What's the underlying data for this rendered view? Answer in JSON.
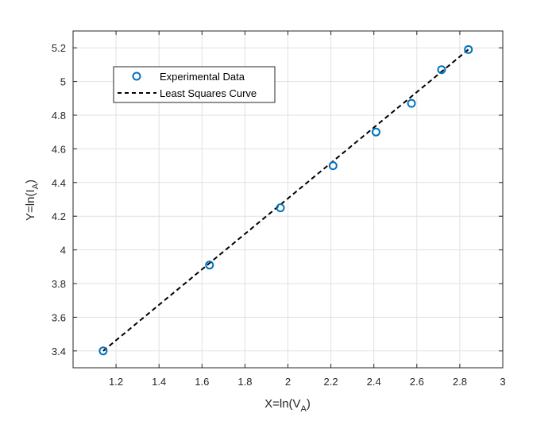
{
  "chart_data": {
    "type": "scatter",
    "title": "",
    "xlabel_main": "X=ln(V",
    "xlabel_sub": "A",
    "xlabel_close": ")",
    "ylabel_main": "Y=ln(I",
    "ylabel_sub": "A",
    "ylabel_close": ")",
    "xlim": [
      1.0,
      3.0
    ],
    "ylim": [
      3.3,
      5.3
    ],
    "xticks": [
      1.2,
      1.4,
      1.6,
      1.8,
      2,
      2.2,
      2.4,
      2.6,
      2.8,
      3
    ],
    "xtick_labels": [
      "1.2",
      "1.4",
      "1.6",
      "1.8",
      "2",
      "2.2",
      "2.4",
      "2.6",
      "2.8",
      "3"
    ],
    "yticks": [
      3.4,
      3.6,
      3.8,
      4,
      4.2,
      4.4,
      4.6,
      4.8,
      5,
      5.2
    ],
    "ytick_labels": [
      "3.4",
      "3.6",
      "3.8",
      "4",
      "4.2",
      "4.4",
      "4.6",
      "4.8",
      "5",
      "5.2"
    ],
    "grid": true,
    "legend_position": "top-left",
    "series": [
      {
        "name": "Experimental Data",
        "kind": "markers",
        "marker": "circle",
        "color": "#0072BD",
        "x": [
          1.14,
          1.635,
          1.965,
          2.21,
          2.41,
          2.575,
          2.715,
          2.84
        ],
        "y": [
          3.4,
          3.91,
          4.25,
          4.5,
          4.7,
          4.87,
          5.07,
          5.19
        ]
      },
      {
        "name": "Least Squares Curve",
        "kind": "line",
        "line_style": "dashed",
        "color": "#000000",
        "x": [
          1.14,
          2.84
        ],
        "y": [
          3.4,
          5.19
        ]
      }
    ]
  },
  "colors": {
    "axis": "#262626",
    "grid": "#e1e1e1",
    "tick_text": "#262626"
  }
}
